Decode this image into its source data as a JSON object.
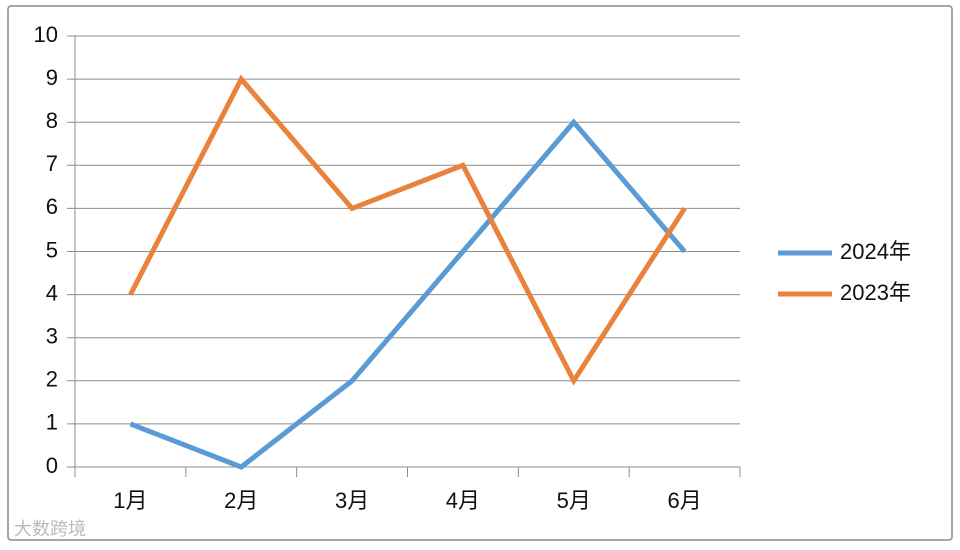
{
  "chart_data": {
    "type": "line",
    "categories": [
      "1月",
      "2月",
      "3月",
      "4月",
      "5月",
      "6月"
    ],
    "series": [
      {
        "name": "2024年",
        "color": "#5b9bd5",
        "values": [
          1,
          0,
          2,
          5,
          8,
          5
        ]
      },
      {
        "name": "2023年",
        "color": "#e8823c",
        "values": [
          4,
          9,
          6,
          7,
          2,
          6
        ]
      }
    ],
    "ylim": [
      0,
      10
    ],
    "yticks": [
      0,
      1,
      2,
      3,
      4,
      5,
      6,
      7,
      8,
      9,
      10
    ],
    "grid": true,
    "legend": "right"
  },
  "watermark": "大数跨境"
}
